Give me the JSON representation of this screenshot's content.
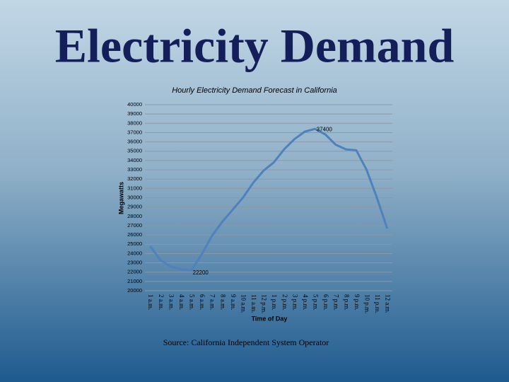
{
  "slide_title": "Electricity Demand",
  "source": "Source: California Independent System Operator",
  "chart_data": {
    "type": "line",
    "title": "Hourly Electricity Demand Forecast in California",
    "x_label": "Time of Day",
    "y_label": "Megawatts",
    "categories": [
      "1 a.m.",
      "2 a.m.",
      "3 a.m.",
      "4 a.m.",
      "5 a.m.",
      "6 a.m.",
      "7 a.m.",
      "8 a.m.",
      "9 a.m.",
      "10 a.m.",
      "11 a.m.",
      "12 p.m.",
      "1 p.m.",
      "2 p.m.",
      "3 p.m.",
      "4 p.m.",
      "5 p.m.",
      "6 p.m.",
      "7 p.m.",
      "8 p.m.",
      "9 p.m.",
      "10 p.m.",
      "11 p.m.",
      "12 a.m."
    ],
    "series": [
      {
        "name": "Megawatts",
        "color": "#4f81bd",
        "values": [
          24800,
          23300,
          22600,
          22300,
          22200,
          23900,
          25900,
          27400,
          28700,
          30000,
          31600,
          32900,
          33800,
          35200,
          36300,
          37100,
          37400,
          36800,
          35700,
          35200,
          35100,
          33000,
          30000,
          26700
        ]
      }
    ],
    "data_labels": [
      4,
      16
    ],
    "ylim": [
      20000,
      40000
    ],
    "yticks": [
      20000,
      21000,
      22000,
      23000,
      24000,
      25000,
      26000,
      27000,
      28000,
      29000,
      30000,
      31000,
      32000,
      33000,
      34000,
      35000,
      36000,
      37000,
      38000,
      39000,
      40000
    ],
    "grid": true
  }
}
